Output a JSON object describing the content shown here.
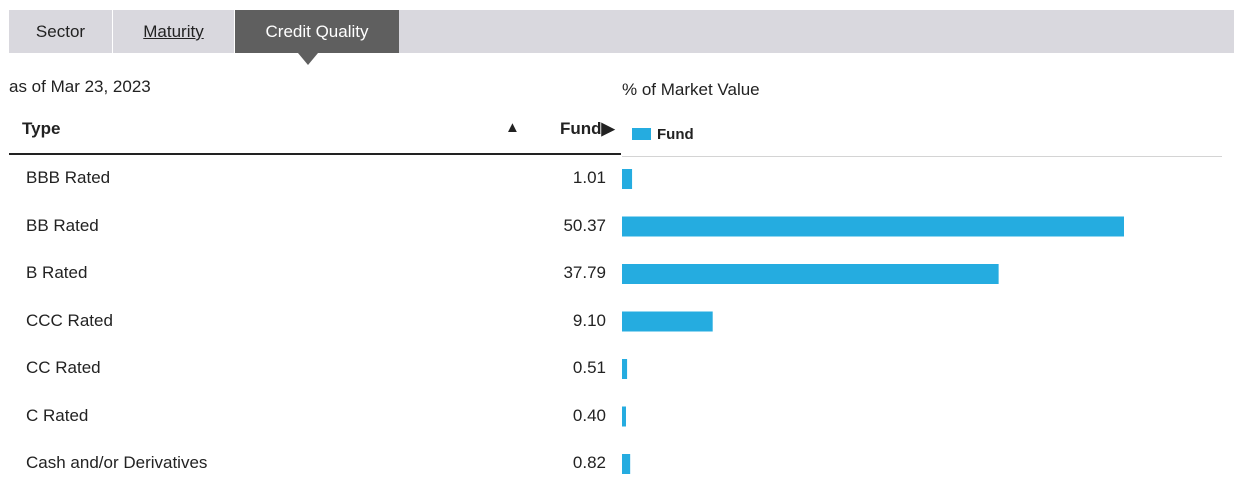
{
  "tabs": [
    {
      "label": "Sector"
    },
    {
      "label": "Maturity"
    },
    {
      "label": "Credit Quality"
    }
  ],
  "as_of": "as of Mar 23, 2023",
  "table": {
    "header_type": "Type",
    "header_fund": "Fund",
    "sort_up_glyph": "▲",
    "expand_glyph": "▶"
  },
  "colors": {
    "bar": "#25ace0",
    "active_tab": "#5f5f5f",
    "tab_bar": "#d9d8de"
  },
  "chart_data": {
    "type": "bar",
    "orientation": "horizontal",
    "title": "% of Market Value",
    "categories": [
      "BBB Rated",
      "BB Rated",
      "B Rated",
      "CCC Rated",
      "CC Rated",
      "C Rated",
      "Cash and/or Derivatives"
    ],
    "display_values": [
      "1.01",
      "50.37",
      "37.79",
      "9.10",
      "0.51",
      "0.40",
      "0.82"
    ],
    "series": [
      {
        "name": "Fund",
        "values": [
          1.01,
          50.37,
          37.79,
          9.1,
          0.51,
          0.4,
          0.82
        ]
      }
    ],
    "xlim": [
      0,
      60
    ],
    "grid": false,
    "legend": "top-left"
  }
}
